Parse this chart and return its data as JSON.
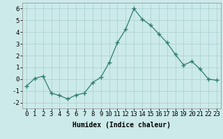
{
  "x": [
    0,
    1,
    2,
    3,
    4,
    5,
    6,
    7,
    8,
    9,
    10,
    11,
    12,
    13,
    14,
    15,
    16,
    17,
    18,
    19,
    20,
    21,
    22,
    23
  ],
  "y": [
    -0.6,
    0.05,
    0.25,
    -1.2,
    -1.4,
    -1.7,
    -1.35,
    -1.2,
    -0.3,
    0.15,
    1.4,
    3.1,
    4.25,
    6.0,
    5.1,
    4.6,
    3.85,
    3.1,
    2.1,
    1.2,
    1.5,
    0.85,
    0.0,
    -0.1
  ],
  "line_color": "#2e7d6e",
  "marker": "+",
  "marker_size": 4,
  "marker_color": "#2e7d6e",
  "bg_color": "#cceaea",
  "grid_color": "#aacece",
  "xlabel": "Humidex (Indice chaleur)",
  "ylim": [
    -2.5,
    6.5
  ],
  "xlim": [
    -0.5,
    23.5
  ],
  "yticks": [
    -2,
    -1,
    0,
    1,
    2,
    3,
    4,
    5,
    6
  ],
  "xticks": [
    0,
    1,
    2,
    3,
    4,
    5,
    6,
    7,
    8,
    9,
    10,
    11,
    12,
    13,
    14,
    15,
    16,
    17,
    18,
    19,
    20,
    21,
    22,
    23
  ],
  "label_fontsize": 7,
  "tick_fontsize": 6.5
}
